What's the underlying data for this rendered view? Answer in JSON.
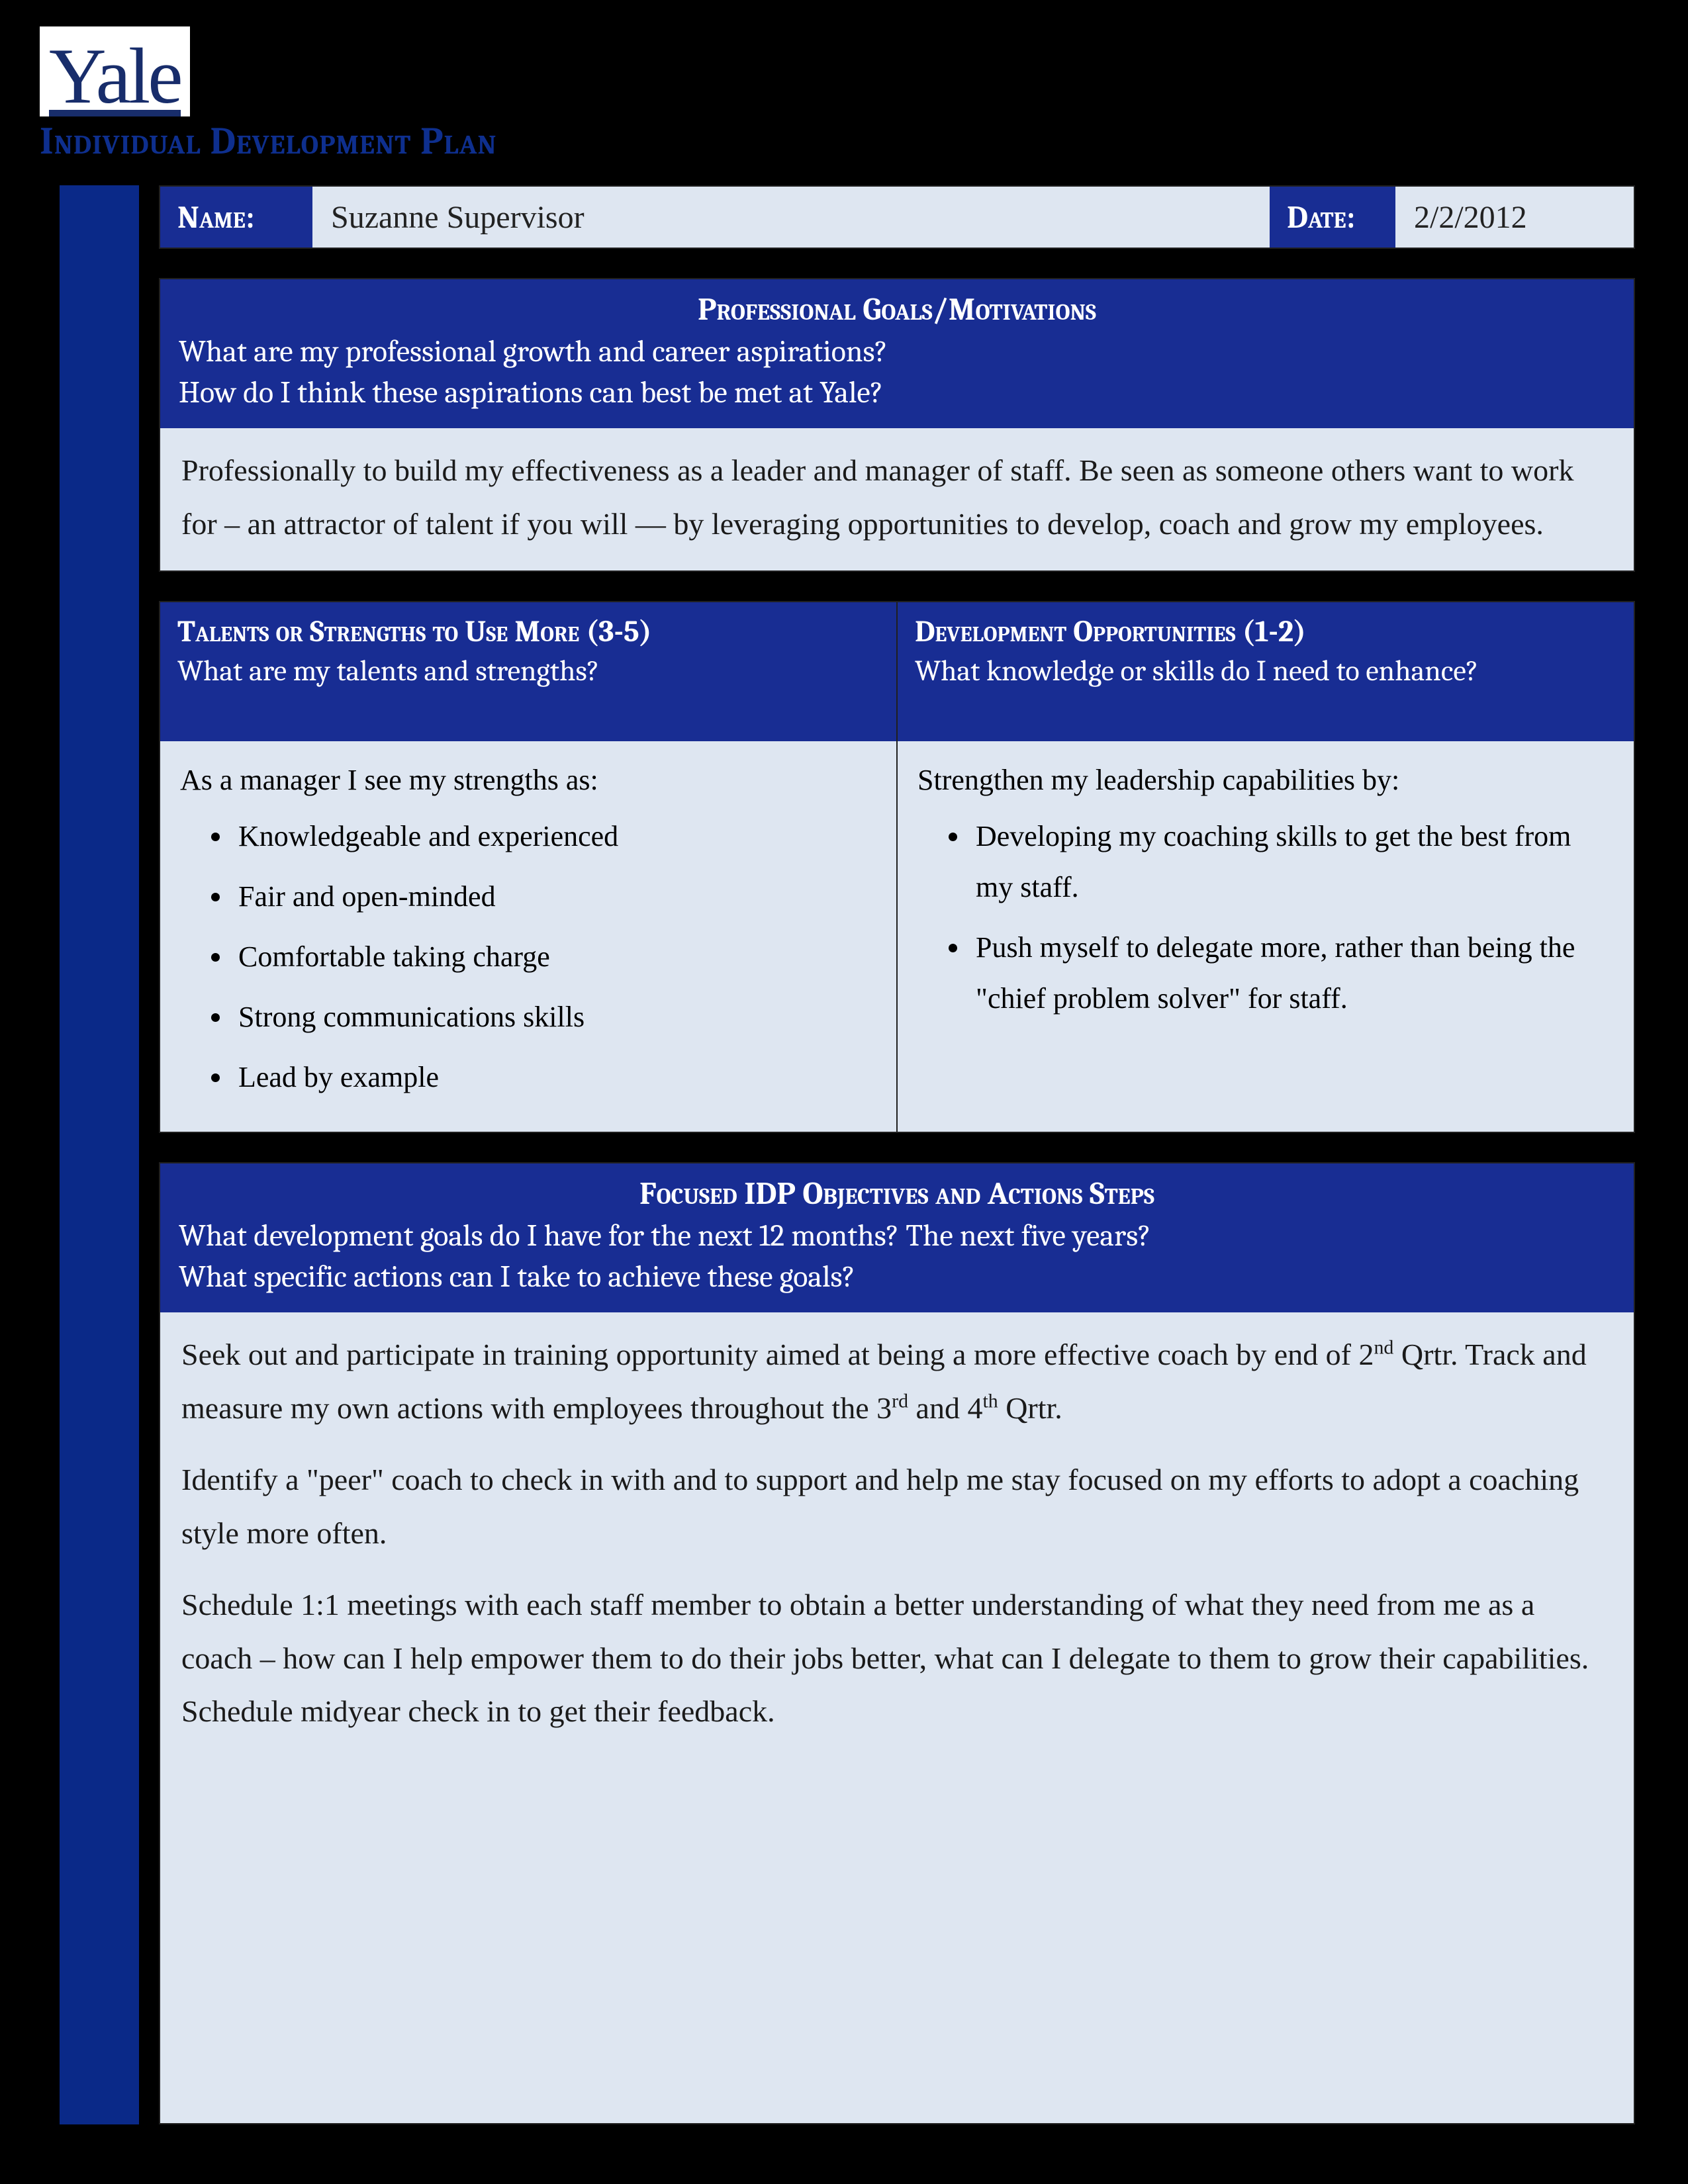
{
  "colors": {
    "page_bg": "#000000",
    "header_bg": "#182d93",
    "body_bg": "#dee6f1",
    "left_bar": "#0a2988",
    "logo_text": "#182d6b",
    "title_text": "#0e2f8e",
    "text_dark": "#1a1a1a",
    "text_light": "#ffffff"
  },
  "typography": {
    "title_fontsize": 58,
    "header_fontsize": 48,
    "body_fontsize": 46,
    "handwriting_family": "Segoe Script / Comic Sans",
    "serif_family": "Cambria / Georgia"
  },
  "logo": {
    "text": "Yale"
  },
  "doc_title": "Individual Development Plan",
  "name_row": {
    "name_label": "Name:",
    "name_value": "Suzanne Supervisor",
    "date_label": "Date:",
    "date_value": "2/2/2012"
  },
  "goals": {
    "title": "Professional Goals/Motivations",
    "sub1": "What are my professional growth and career aspirations?",
    "sub2": "How do I think these aspirations can best be met at Yale?",
    "body": "Professionally to build my effectiveness as a leader and manager of staff.  Be seen as someone others want to work for – an attractor of talent if you will —  by leveraging opportunities to develop, coach and grow my employees."
  },
  "strengths": {
    "title": "Talents or Strengths to Use More (3-5)",
    "sub": "What are my talents and strengths?",
    "intro": "As a manager I see my strengths as:",
    "items": [
      "Knowledgeable and experienced",
      "Fair and open-minded",
      "Comfortable taking charge",
      "Strong communications skills",
      "Lead by example"
    ]
  },
  "dev": {
    "title": "Development Opportunities (1-2)",
    "sub": "What knowledge or skills do I need to enhance?",
    "intro": "Strengthen my leadership capabilities by:",
    "items": [
      "Developing my coaching skills to get the best from my staff.",
      "Push myself to delegate more, rather than being the \"chief problem solver\" for staff."
    ]
  },
  "idp": {
    "title": "Focused IDP Objectives and Actions Steps",
    "sub1": "What development goals do I have for the next 12 months?  The next five years?",
    "sub2": "What specific actions can I take to achieve these goals?",
    "p1_a": "Seek out and participate in training opportunity aimed at being a more effective coach by end of 2",
    "p1_b": " Qrtr.  Track and measure my own actions with employees throughout the 3",
    "p1_c": " and 4",
    "p1_d": " Qrtr.",
    "sup_nd": "nd",
    "sup_rd": "rd",
    "sup_th": "th",
    "p2": "Identify a \"peer\" coach to check in with and to support and help me stay focused on my efforts to adopt a coaching style more often.",
    "p3": "Schedule 1:1 meetings with each staff member to obtain a better understanding of what they need from me as a coach – how can I help empower them to do their jobs better, what can I delegate to them to grow their capabilities.  Schedule midyear check in to get their feedback."
  }
}
